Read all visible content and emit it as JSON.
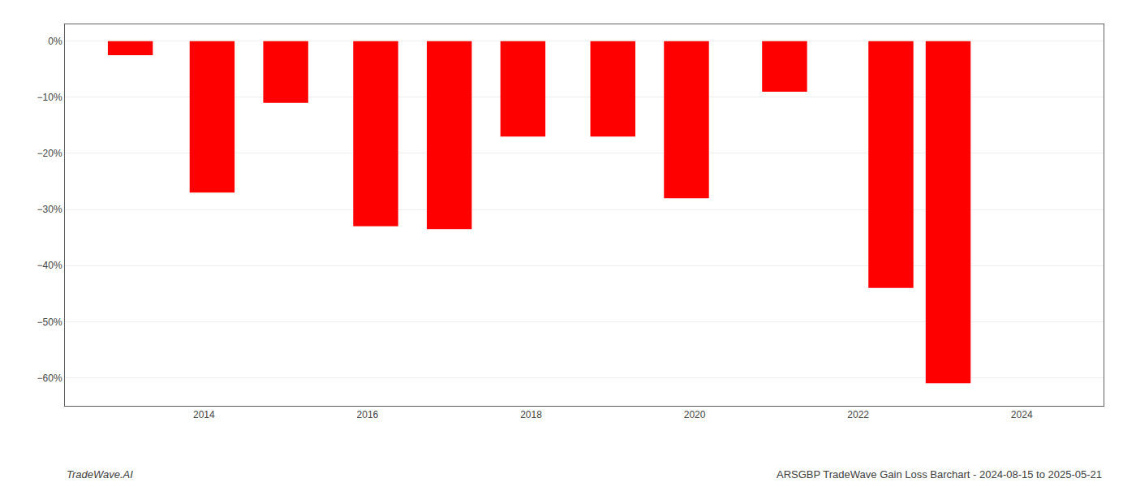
{
  "chart_data": {
    "type": "bar",
    "x": [
      2013.1,
      2014.1,
      2015.0,
      2016.1,
      2017.0,
      2017.9,
      2019.0,
      2019.9,
      2021.1,
      2022.4,
      2023.1
    ],
    "values": [
      -2.5,
      -27.0,
      -11.0,
      -33.0,
      -33.5,
      -17.0,
      -17.0,
      -28.0,
      -9.0,
      -44.0,
      -61.0
    ],
    "color": "#ff0000",
    "xlim": [
      2012.3,
      2025.0
    ],
    "xticks": [
      2014,
      2016,
      2018,
      2020,
      2022,
      2024
    ],
    "ylim": [
      -65,
      3
    ],
    "yticks": [
      {
        "value": 0,
        "label": "0%"
      },
      {
        "value": -10,
        "label": "−10%"
      },
      {
        "value": -20,
        "label": "−20%"
      },
      {
        "value": -30,
        "label": "−30%"
      },
      {
        "value": -40,
        "label": "−40%"
      },
      {
        "value": -50,
        "label": "−50%"
      },
      {
        "value": -60,
        "label": "−60%"
      }
    ],
    "grid": "y",
    "annotations": [
      "TradeWave.AI",
      "ARSGBP TradeWave Gain Loss Barchart - 2024-08-15 to 2025-05-21"
    ]
  }
}
